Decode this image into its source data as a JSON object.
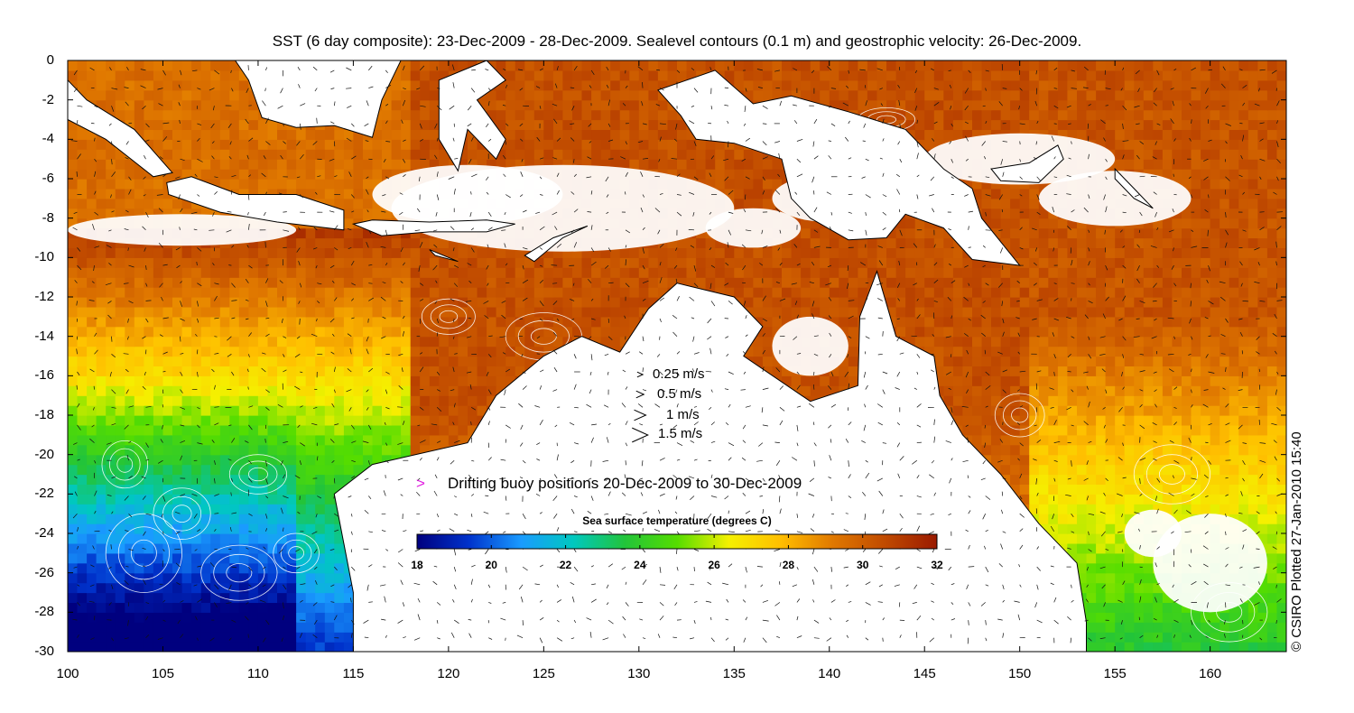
{
  "title": "SST (6 day composite): 23-Dec-2009 - 28-Dec-2009. Sealevel contours (0.1 m) and geostrophic velocity: 26-Dec-2009.",
  "credit": "© CSIRO Plotted 27-Jan-2010 15:40",
  "axes": {
    "x_ticks": [
      "100",
      "105",
      "110",
      "115",
      "120",
      "125",
      "130",
      "135",
      "140",
      "145",
      "150",
      "155",
      "160"
    ],
    "y_ticks": [
      "0",
      "-2",
      "-4",
      "-6",
      "-8",
      "-10",
      "-12",
      "-14",
      "-16",
      "-18",
      "-20",
      "-22",
      "-24",
      "-26",
      "-28",
      "-30"
    ],
    "lon_range": [
      100,
      164
    ],
    "lat_range": [
      -30,
      0
    ]
  },
  "velocity_legend": {
    "items": [
      {
        "label": "0.25 m/s",
        "speed": 0.25
      },
      {
        "label": "0.5 m/s",
        "speed": 0.5
      },
      {
        "label": "1 m/s",
        "speed": 1
      },
      {
        "label": "1.5 m/s",
        "speed": 1.5
      }
    ]
  },
  "buoy_legend": {
    "symbol": ">",
    "label": "Drifting buoy positions 20-Dec-2009 to 30-Dec-2009",
    "color": "#e020e0"
  },
  "colorbar": {
    "title": "Sea surface temperature (degrees C)",
    "ticks": [
      "18",
      "20",
      "22",
      "24",
      "26",
      "28",
      "30",
      "32"
    ],
    "min": 18,
    "max": 32,
    "colors": [
      "#00007f",
      "#0033cc",
      "#1a9bff",
      "#00c8c0",
      "#22c43a",
      "#55dd00",
      "#f5f000",
      "#ffbe00",
      "#e07800",
      "#c04a00",
      "#9a1a00"
    ]
  },
  "colors": {
    "land": "#ffffff",
    "coast": "#000000",
    "contour": "#ffffff",
    "arrow": "#111111"
  }
}
